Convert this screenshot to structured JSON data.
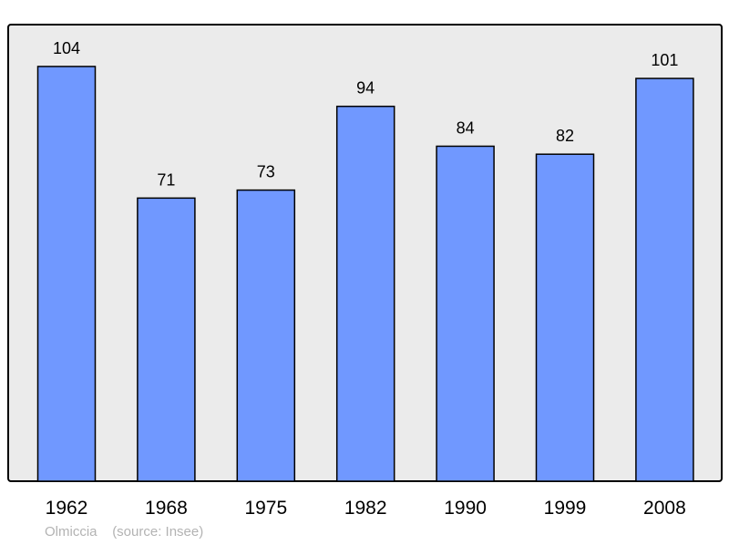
{
  "chart_data": {
    "type": "bar",
    "categories": [
      "1962",
      "1968",
      "1975",
      "1982",
      "1990",
      "1999",
      "2008"
    ],
    "values": [
      104,
      71,
      73,
      94,
      84,
      82,
      101
    ],
    "title": "",
    "xlabel": "",
    "ylabel": "",
    "ylim": [
      0,
      114.5
    ],
    "grid": false,
    "data_labels": true,
    "colors": {
      "bar": "#7098ff",
      "plot_background": "#ebebeb",
      "border": "#000000"
    }
  },
  "footer": {
    "place": "Olmiccia",
    "source": "(source: Insee)"
  }
}
